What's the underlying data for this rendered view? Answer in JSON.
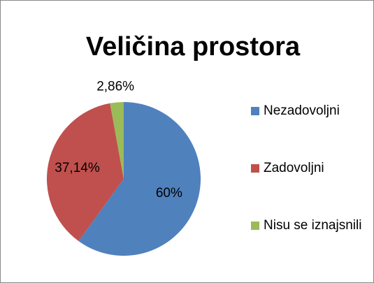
{
  "chart_data": {
    "type": "pie",
    "title": "Veličina prostora",
    "series": [
      {
        "name": "Nezadovoljni",
        "color": "#4f81bd",
        "values": [
          60
        ],
        "value_labels": [
          "60%"
        ]
      },
      {
        "name": "Zadovoljni",
        "color": "#c0504d",
        "values": [
          37.14
        ],
        "value_labels": [
          "37,14%"
        ]
      },
      {
        "name": "Nisu se iznajsnili",
        "color": "#9bbb59",
        "values": [
          2.86
        ],
        "value_labels": [
          "2,86%"
        ]
      }
    ],
    "legend": "right"
  }
}
